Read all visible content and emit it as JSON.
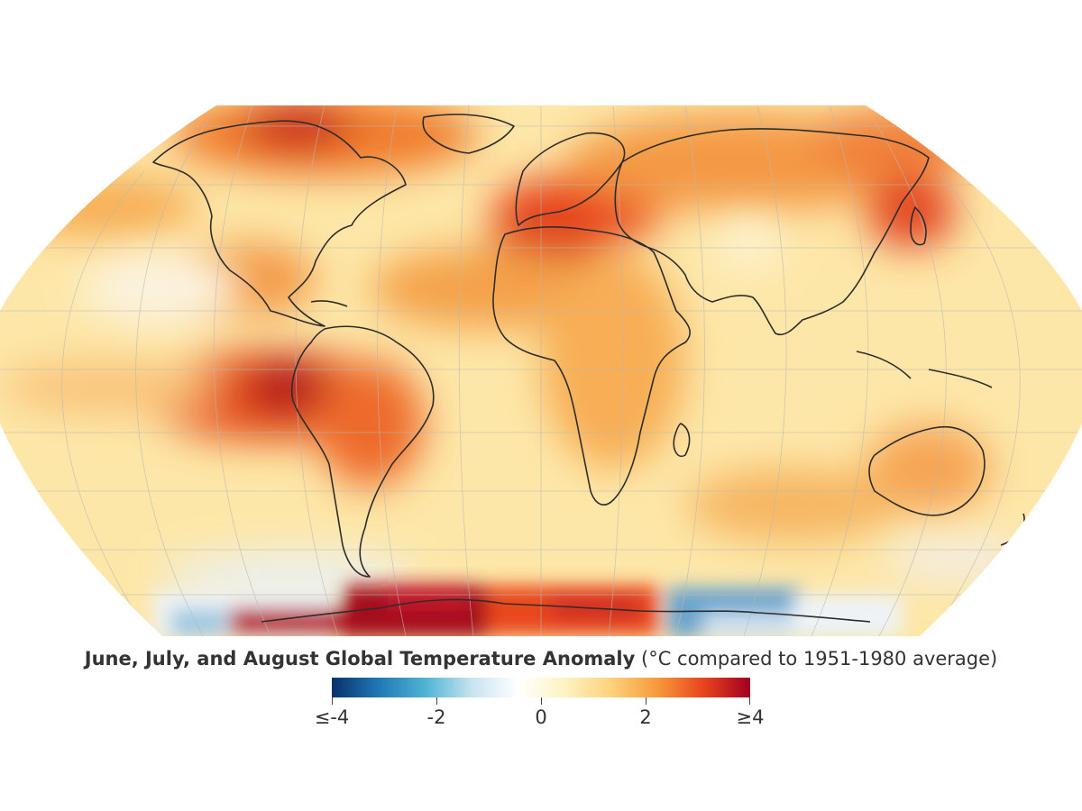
{
  "title": {
    "main": "June, July, and August Global Temperature Anomaly",
    "sub": "(°C compared to 1951-1980 average)"
  },
  "legend": {
    "min": -4,
    "max": 4,
    "ticks": [
      {
        "value": -4,
        "label": "≤-4"
      },
      {
        "value": -2,
        "label": "-2"
      },
      {
        "value": 0,
        "label": "0"
      },
      {
        "value": 2,
        "label": "2"
      },
      {
        "value": 4,
        "label": "≥4"
      }
    ],
    "colors": [
      "#08306b",
      "#1f78b4",
      "#4eb3d3",
      "#c6e3f0",
      "#ffffff",
      "#fdf3c4",
      "#fdd27c",
      "#f89a3a",
      "#e8441e",
      "#a1001f"
    ]
  },
  "map": {
    "projection": "Robinson",
    "background_anomaly_color": "#fde3a0",
    "land_outline_color": "#2d2d2d",
    "graticule_color": "#b8b8b8"
  }
}
